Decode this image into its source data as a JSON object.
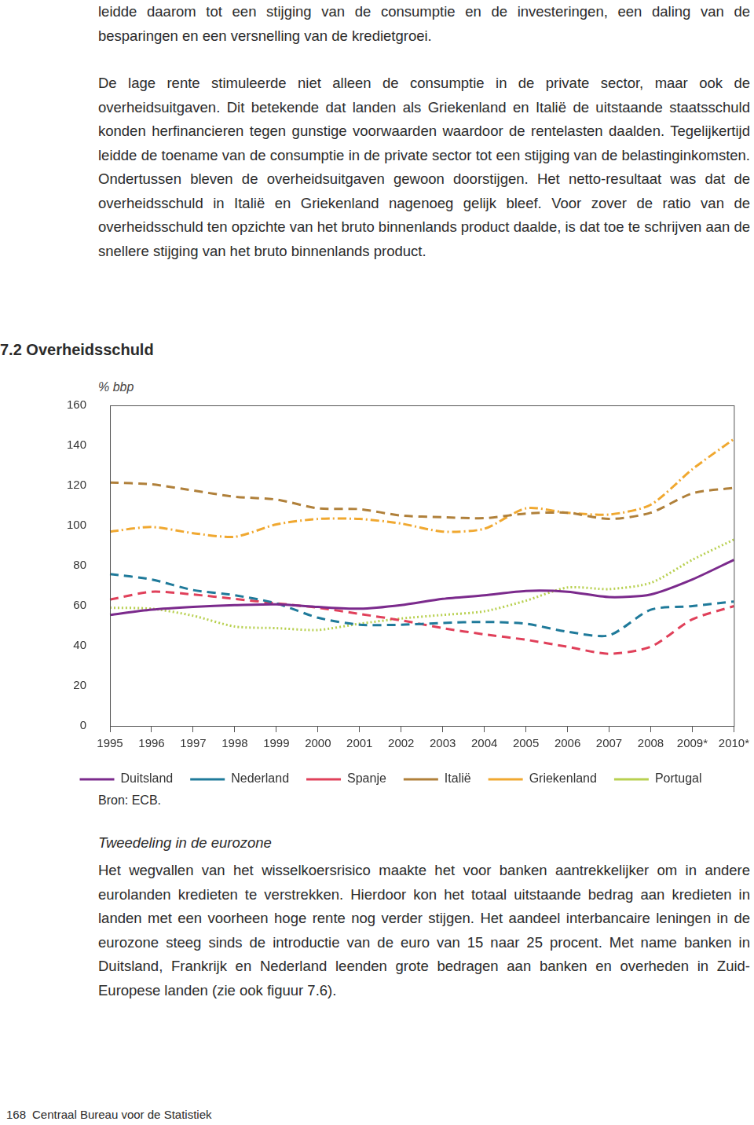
{
  "page": {
    "text_top": [
      "leidde daarom tot een stijging van de consumptie en de investeringen, een daling van de besparingen en een versnelling van de kredietgroei.",
      "De lage rente stimuleerde niet alleen de consumptie in de private sector, maar ook de overheidsuitgaven. Dit betekende dat landen als Griekenland en Italië de uitstaande staatsschuld konden herfinancieren tegen gunstige voorwaarden waardoor de rentelasten daalden. Tegelijkertijd leidde de toename van de consumptie in de private sector tot een stijging van de belastinginkomsten. Ondertussen bleven de overheidsuitgaven gewoon doorstijgen. Het netto-resultaat was dat de overheidsschuld in Italië en Griekenland nagenoeg gelijk bleef. Voor zover de ratio van de overheidsschuld ten opzichte van het bruto binnenlands product daalde, is dat toe te schrijven aan de snellere stijging van het bruto binnenlands product."
    ],
    "source": "Bron: ECB.",
    "section_heading": "Tweedeling in de eurozone",
    "text_bottom": [
      "Het wegvallen van het wisselkoersrisico maakte het voor banken aantrekkelijker om in andere eurolanden kredieten te verstrekken. Hierdoor kon het totaal uitstaande bedrag aan kredieten in landen met een voorheen hoge rente nog verder stijgen. Het aandeel interbancaire leningen in de eurozone steeg sinds de introductie van de euro van 15 naar 25 procent. Met name banken in Duitsland, Frankrijk en Nederland leenden grote bedragen aan banken en overheden in Zuid-Europese landen (zie ook figuur 7.6)."
    ],
    "footer": {
      "page_number": 168,
      "publisher": "Centraal Bureau voor de Statistiek"
    }
  },
  "chart_data": {
    "type": "line",
    "title": "7.2 Overheidsschuld",
    "y_label": "% bbp",
    "categories": [
      "1995",
      "1996",
      "1997",
      "1998",
      "1999",
      "2000",
      "2001",
      "2002",
      "2003",
      "2004",
      "2005",
      "2006",
      "2007",
      "2008",
      "2009*",
      "2010*"
    ],
    "series": [
      {
        "name": "Duitsland",
        "color": "#7b2a8c",
        "line_style": "solid",
        "values": [
          55.4,
          58,
          59.4,
          60.3,
          60.7,
          59.4,
          58.5,
          60.3,
          63.4,
          65.2,
          67.4,
          67,
          64.3,
          65.6,
          73.1,
          82.9
        ]
      },
      {
        "name": "Nederland",
        "color": "#1f7a9a",
        "line_style": "dashed",
        "values": [
          75.8,
          73.1,
          67.8,
          65.2,
          61.2,
          54,
          50.5,
          50.5,
          51.4,
          51.9,
          51,
          47,
          45.2,
          58,
          59.8,
          62.1
        ]
      },
      {
        "name": "Spanje",
        "color": "#e0405a",
        "line_style": "dashed",
        "values": [
          63,
          67,
          65.6,
          63.4,
          61.2,
          59,
          55.9,
          52.7,
          48.8,
          45.7,
          43,
          39.5,
          36,
          39.5,
          53.2,
          59.8
        ]
      },
      {
        "name": "Italië",
        "color": "#b0803a",
        "line_style": "dashed",
        "values": [
          121.5,
          120.6,
          117.5,
          114.4,
          113,
          108.6,
          108.2,
          105,
          104.2,
          103.7,
          106,
          106.4,
          103.3,
          106.4,
          116.1,
          118.8
        ]
      },
      {
        "name": "Griekenland",
        "color": "#f0a830",
        "line_style": "dashdot",
        "values": [
          97,
          99.3,
          96.2,
          94.4,
          100.6,
          103.3,
          103.3,
          101,
          97,
          98.4,
          108.6,
          106.4,
          105.5,
          110.4,
          128.1,
          143.2
        ]
      },
      {
        "name": "Portugal",
        "color": "#b8d050",
        "line_style": "dotted",
        "values": [
          59,
          58.5,
          55,
          49.6,
          48.8,
          47.9,
          51,
          53.6,
          55.4,
          57.2,
          62.5,
          69.1,
          68.3,
          71.4,
          82.9,
          93
        ]
      }
    ],
    "ylim": [
      0,
      160
    ],
    "yticks": [
      0,
      20,
      40,
      60,
      80,
      100,
      120,
      140,
      160
    ],
    "grid": false,
    "legend": "bottom"
  }
}
